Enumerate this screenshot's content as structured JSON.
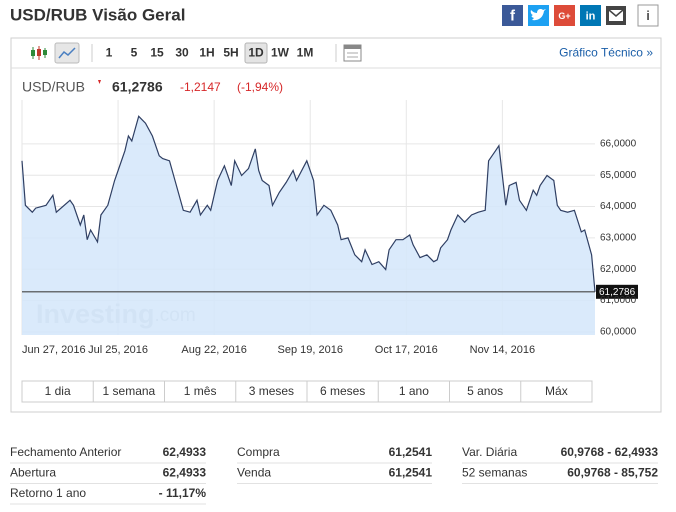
{
  "header": {
    "title": "USD/RUB Visão Geral",
    "share": {
      "facebook": "f",
      "google": "G+",
      "linkedin": "in",
      "info": "i"
    }
  },
  "toolbar": {
    "intervals": [
      "1",
      "5",
      "15",
      "30",
      "1H",
      "5H",
      "1D",
      "1W",
      "1M"
    ],
    "selected": "1D",
    "link": "Gráfico Técnico »"
  },
  "quote": {
    "symbol": "USD/RUB",
    "price": "61,2786",
    "change": "-1,2147",
    "change_pct": "(-1,94%)"
  },
  "chart_data": {
    "type": "line",
    "color": "#2f3f63",
    "fill": "#d3e6fa",
    "watermark": [
      "Investing",
      ".com"
    ],
    "x": [
      "2016-06-27",
      "2016-06-28",
      "2016-06-30",
      "2016-07-01",
      "2016-07-04",
      "2016-07-06",
      "2016-07-07",
      "2016-07-11",
      "2016-07-12",
      "2016-07-14",
      "2016-07-15",
      "2016-07-16",
      "2016-07-17",
      "2016-07-19",
      "2016-07-20",
      "2016-07-22",
      "2016-07-24",
      "2016-07-25",
      "2016-07-27",
      "2016-07-28",
      "2016-07-29",
      "2016-07-31",
      "2016-08-02",
      "2016-08-04",
      "2016-08-06",
      "2016-08-07",
      "2016-08-09",
      "2016-08-11",
      "2016-08-13",
      "2016-08-15",
      "2016-08-17",
      "2016-08-18",
      "2016-08-20",
      "2016-08-21",
      "2016-08-23",
      "2016-08-25",
      "2016-08-27",
      "2016-08-28",
      "2016-08-30",
      "2016-09-01",
      "2016-09-03",
      "2016-09-04",
      "2016-09-05",
      "2016-09-07",
      "2016-09-08",
      "2016-09-10",
      "2016-09-12",
      "2016-09-14",
      "2016-09-15",
      "2016-09-18",
      "2016-09-20",
      "2016-09-21",
      "2016-09-23",
      "2016-09-25",
      "2016-09-27",
      "2016-09-28",
      "2016-09-30",
      "2016-10-02",
      "2016-10-04",
      "2016-10-05",
      "2016-10-07",
      "2016-10-09",
      "2016-10-11",
      "2016-10-12",
      "2016-10-14",
      "2016-10-16",
      "2016-10-18",
      "2016-10-19",
      "2016-10-21",
      "2016-10-23",
      "2016-10-25",
      "2016-10-26",
      "2016-10-27",
      "2016-10-29",
      "2016-10-30",
      "2016-11-01",
      "2016-11-03",
      "2016-11-05",
      "2016-11-07",
      "2016-11-09",
      "2016-11-10",
      "2016-11-12",
      "2016-11-13",
      "2016-11-15",
      "2016-11-16",
      "2016-11-18",
      "2016-11-19",
      "2016-11-21",
      "2016-11-23",
      "2016-11-24",
      "2016-11-25",
      "2016-11-27",
      "2016-11-29",
      "2016-11-30",
      "2016-12-01",
      "2016-12-03",
      "2016-12-05",
      "2016-12-07",
      "2016-12-08",
      "2016-12-10",
      "2016-12-11"
    ],
    "values": [
      65.46,
      64.04,
      63.82,
      63.95,
      64.04,
      64.36,
      63.82,
      64.2,
      64.04,
      63.41,
      63.73,
      62.94,
      63.25,
      62.87,
      63.73,
      64.04,
      64.83,
      65.15,
      65.78,
      66.25,
      66.09,
      66.88,
      66.66,
      66.25,
      65.62,
      65.53,
      65.46,
      64.67,
      63.88,
      63.82,
      64.2,
      63.73,
      64.04,
      63.88,
      64.83,
      65.3,
      64.67,
      65.46,
      64.99,
      65.21,
      65.84,
      65.15,
      64.83,
      64.67,
      64.04,
      64.45,
      64.77,
      65.15,
      64.83,
      65.46,
      64.83,
      63.73,
      64.04,
      63.88,
      63.41,
      62.94,
      63.0,
      62.46,
      62.24,
      62.62,
      62.15,
      62.24,
      61.99,
      62.62,
      62.94,
      62.94,
      63.09,
      62.78,
      62.37,
      62.46,
      62.24,
      62.3,
      62.68,
      62.94,
      63.25,
      63.73,
      63.5,
      63.73,
      63.82,
      63.88,
      65.46,
      65.78,
      65.94,
      64.04,
      64.67,
      64.77,
      64.2,
      63.88,
      64.52,
      64.36,
      64.67,
      64.99,
      64.83,
      64.04,
      63.88,
      63.82,
      63.88,
      63.19,
      63.25,
      62.46,
      61.2786
    ],
    "xlim": [
      "2016-06-27",
      "2016-12-11"
    ],
    "xticks": [
      {
        "value": "2016-06-27",
        "label": "Jun 27, 2016"
      },
      {
        "value": "2016-07-25",
        "label": "Jul 25, 2016"
      },
      {
        "value": "2016-08-22",
        "label": "Aug 22, 2016"
      },
      {
        "value": "2016-09-19",
        "label": "Sep 19, 2016"
      },
      {
        "value": "2016-10-17",
        "label": "Oct 17, 2016"
      },
      {
        "value": "2016-11-14",
        "label": "Nov 14, 2016"
      }
    ],
    "ylim": [
      59.9,
      67.4
    ],
    "yticks": [
      {
        "value": 60,
        "label": "60,0000"
      },
      {
        "value": 61,
        "label": "61,0000"
      },
      {
        "value": 62,
        "label": "62,0000"
      },
      {
        "value": 63,
        "label": "63,0000"
      },
      {
        "value": 64,
        "label": "64,0000"
      },
      {
        "value": 65,
        "label": "65,0000"
      },
      {
        "value": 66,
        "label": "66,0000"
      }
    ],
    "grid": true,
    "price_line": {
      "value": 61.2786,
      "label": "61,2786"
    }
  },
  "ranges": [
    "1 dia",
    "1 semana",
    "1 mês",
    "3 meses",
    "6 meses",
    "1 ano",
    "5 anos",
    "Máx"
  ],
  "stats": [
    [
      [
        "Fechamento Anterior",
        "62,4933"
      ],
      [
        "Abertura",
        "62,4933"
      ],
      [
        "Retorno 1 ano",
        "- 11,17%"
      ]
    ],
    [
      [
        "Compra",
        "61,2541"
      ],
      [
        "Venda",
        "61,2541"
      ]
    ],
    [
      [
        "Var. Diária",
        "60,9768 - 62,4933"
      ],
      [
        "52 semanas",
        "60,9768 - 85,752"
      ]
    ]
  ]
}
